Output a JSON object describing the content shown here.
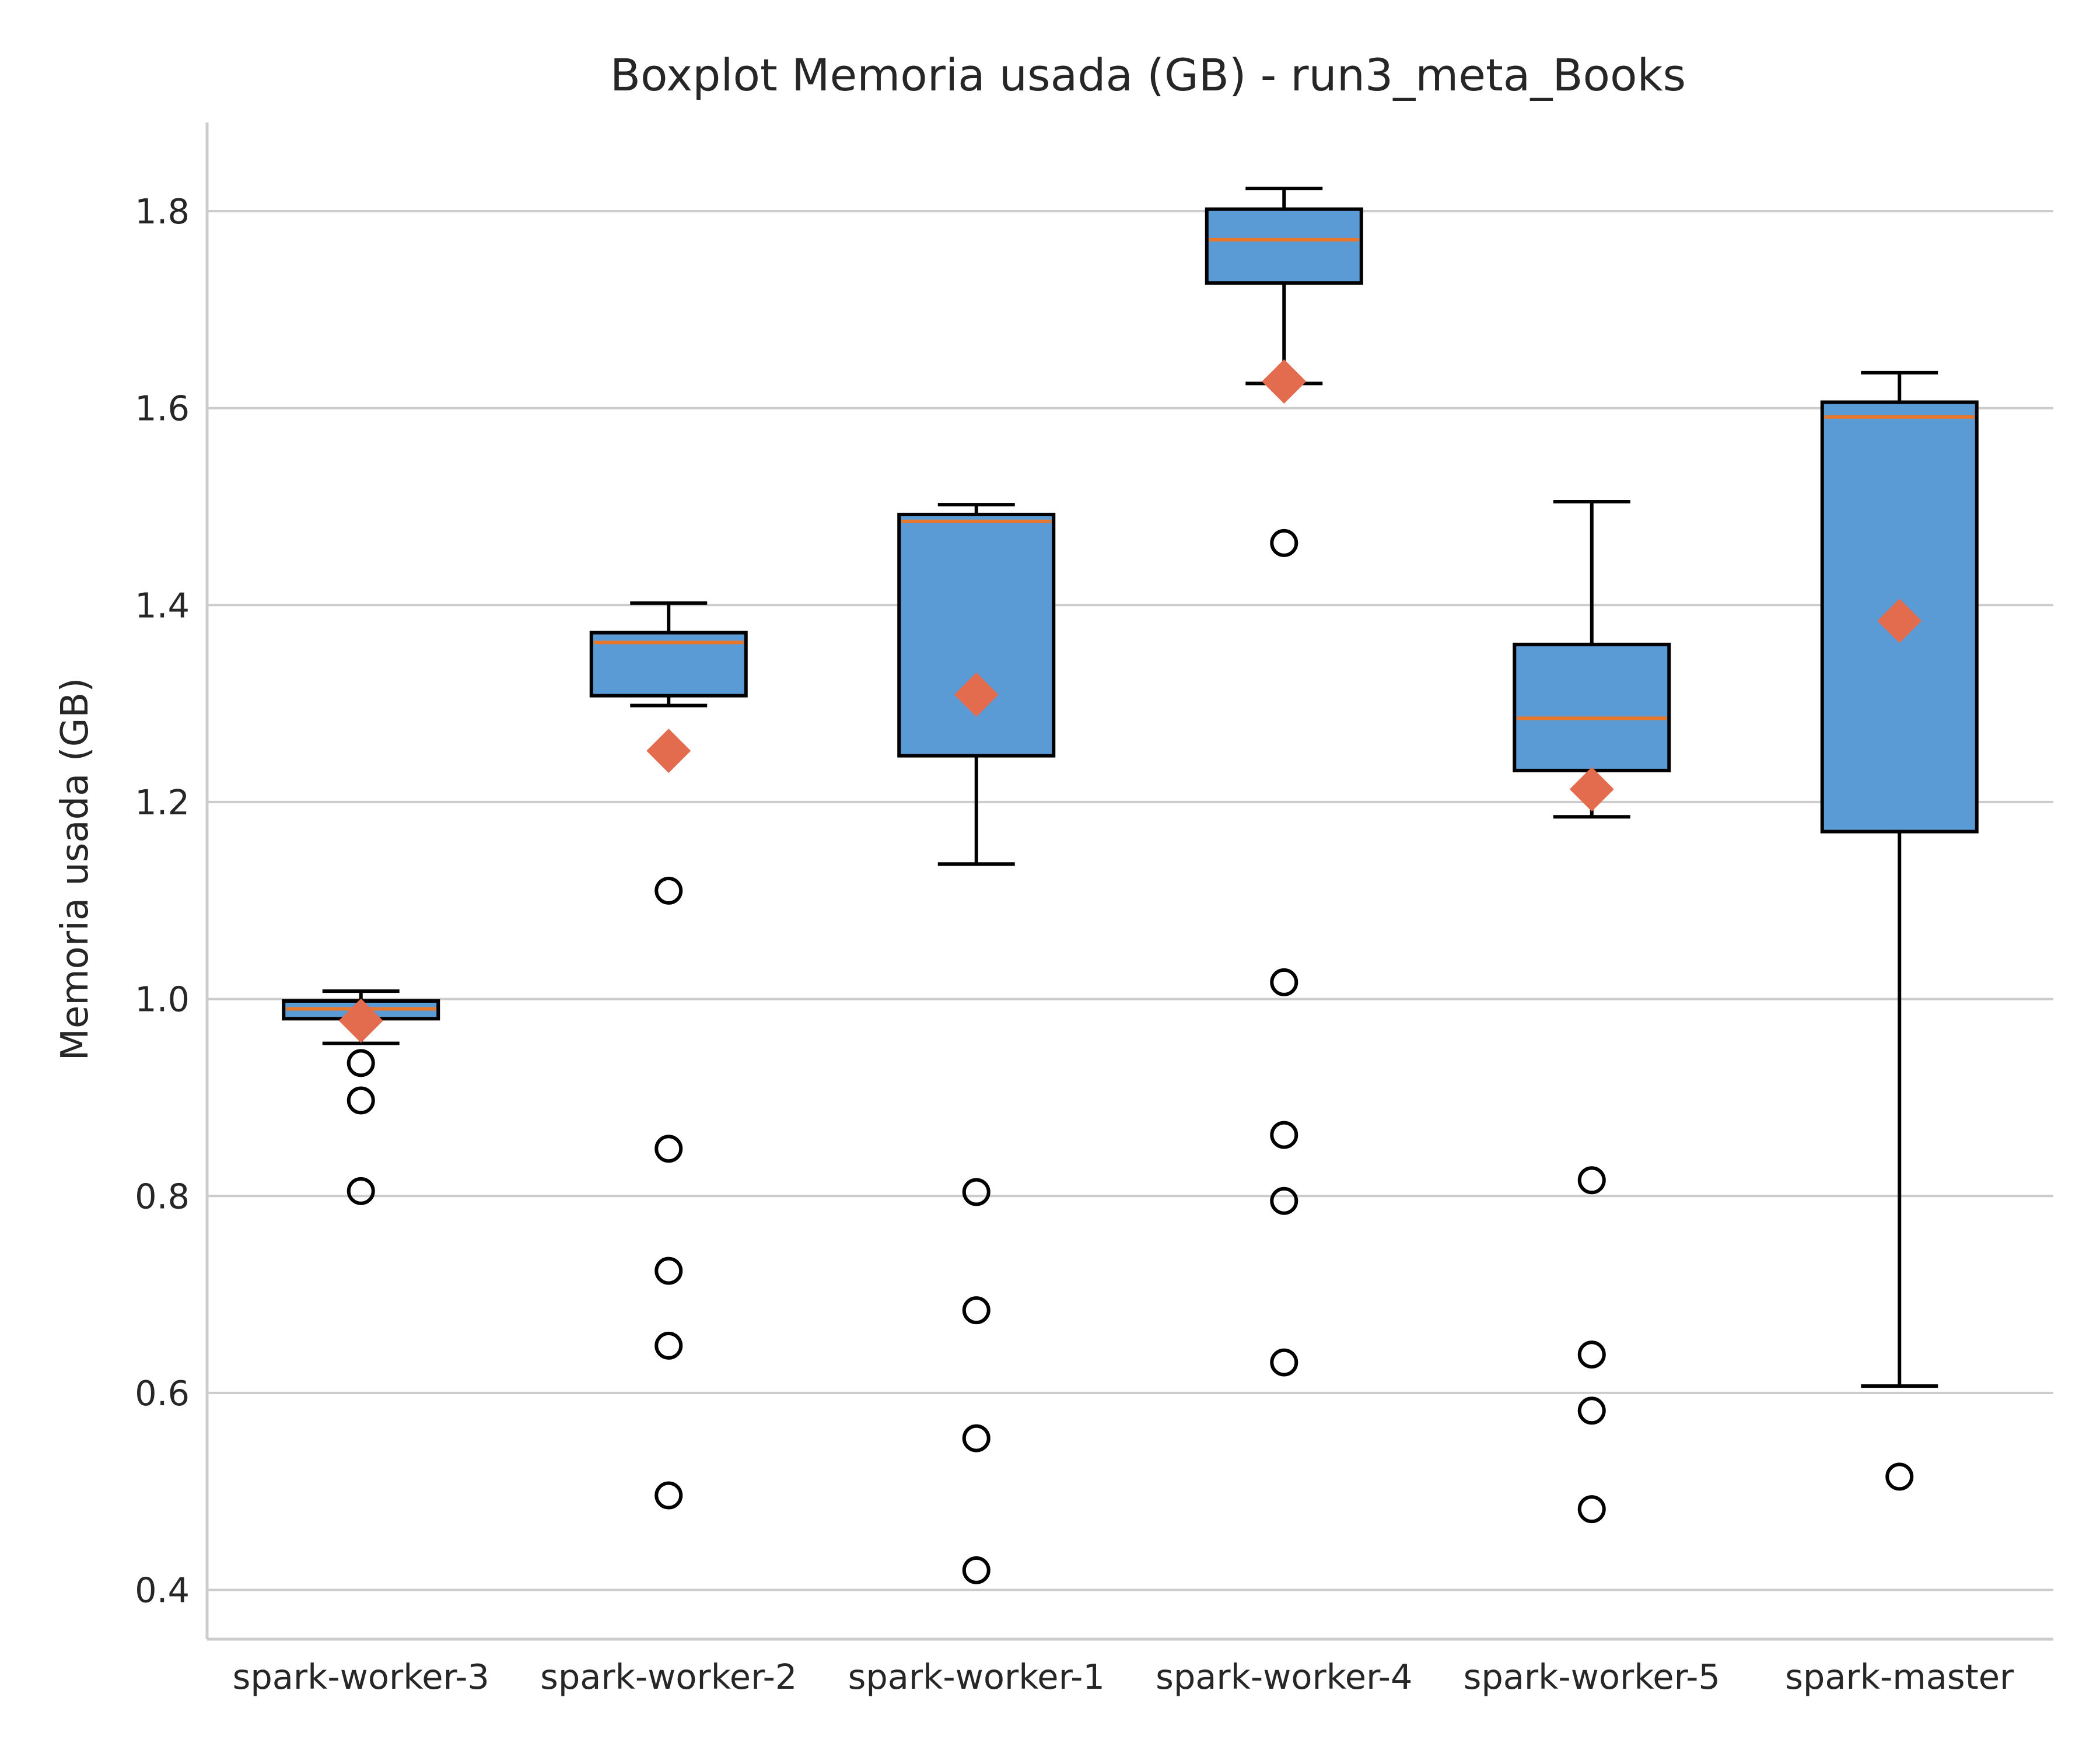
{
  "chart_data": {
    "type": "box",
    "title": "Boxplot Memoria usada (GB) - run3_meta_Books",
    "xlabel": "",
    "ylabel": "Memoria usada (GB)",
    "ylim": [
      0.35,
      1.89
    ],
    "yticks": [
      "0.4",
      "0.6",
      "0.8",
      "1.0",
      "1.2",
      "1.4",
      "1.6",
      "1.8"
    ],
    "grid": "horizontal",
    "colors": {
      "box_fill": "#5b9bd5",
      "median": "#e8772e",
      "mean_marker": "#e36c4f",
      "outline": "#000000",
      "grid": "#cccccc",
      "spine": "#cccccc"
    },
    "categories": [
      "spark-worker-3",
      "spark-worker-2",
      "spark-worker-1",
      "spark-worker-4",
      "spark-worker-5",
      "spark-master"
    ],
    "boxes": [
      {
        "whisker_low": 0.955,
        "q1": 0.98,
        "median": 0.99,
        "q3": 0.998,
        "whisker_high": 1.008,
        "mean": 0.978,
        "outliers": [
          0.935,
          0.897,
          0.805
        ]
      },
      {
        "whisker_low": 1.298,
        "q1": 1.308,
        "median": 1.362,
        "q3": 1.372,
        "whisker_high": 1.402,
        "mean": 1.252,
        "outliers": [
          1.11,
          0.848,
          0.724,
          0.648,
          0.496
        ]
      },
      {
        "whisker_low": 1.137,
        "q1": 1.247,
        "median": 1.485,
        "q3": 1.492,
        "whisker_high": 1.502,
        "mean": 1.309,
        "outliers": [
          0.804,
          0.684,
          0.554,
          0.42
        ]
      },
      {
        "whisker_low": 1.625,
        "q1": 1.727,
        "median": 1.771,
        "q3": 1.802,
        "whisker_high": 1.823,
        "mean": 1.627,
        "outliers": [
          1.463,
          1.017,
          0.862,
          0.795,
          0.631
        ]
      },
      {
        "whisker_low": 1.185,
        "q1": 1.232,
        "median": 1.285,
        "q3": 1.36,
        "whisker_high": 1.505,
        "mean": 1.213,
        "outliers": [
          0.816,
          0.639,
          0.582,
          0.482
        ]
      },
      {
        "whisker_low": 0.607,
        "q1": 1.17,
        "median": 1.591,
        "q3": 1.606,
        "whisker_high": 1.636,
        "mean": 1.384,
        "outliers": [
          0.515
        ]
      }
    ]
  }
}
